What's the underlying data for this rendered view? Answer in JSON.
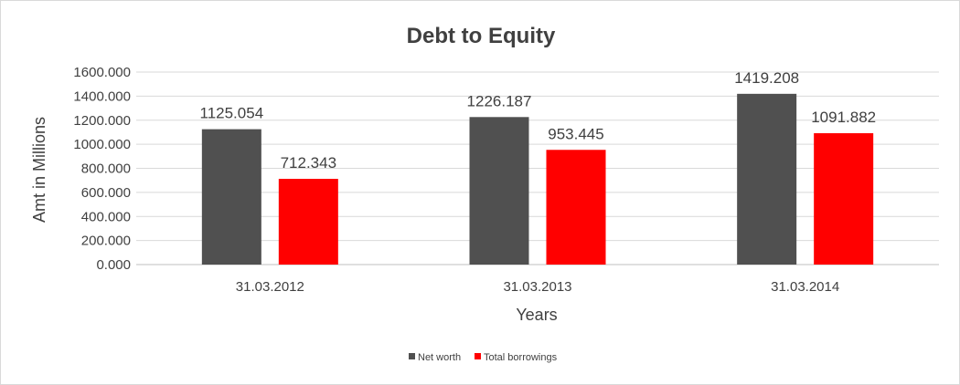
{
  "chart_data": {
    "type": "bar",
    "title": "Debt to Equity",
    "xlabel": "Years",
    "ylabel": "Amt in Millions",
    "categories": [
      "31.03.2012",
      "31.03.2013",
      "31.03.2014"
    ],
    "series": [
      {
        "name": "Net worth",
        "values": [
          1125.054,
          1226.187,
          1419.208
        ],
        "labels": [
          "1125.054",
          "1226.187",
          "1419.208"
        ],
        "color": "#505050"
      },
      {
        "name": "Total borrowings",
        "values": [
          712.343,
          953.445,
          1091.882
        ],
        "labels": [
          "712.343",
          "953.445",
          "1091.882"
        ],
        "color": "#ff0000"
      }
    ],
    "ylim": [
      0,
      1600
    ],
    "yticks": [
      "0.000",
      "200.000",
      "400.000",
      "600.000",
      "800.000",
      "1000.000",
      "1200.000",
      "1400.000",
      "1600.000"
    ],
    "grid": true,
    "legend_position": "bottom"
  }
}
